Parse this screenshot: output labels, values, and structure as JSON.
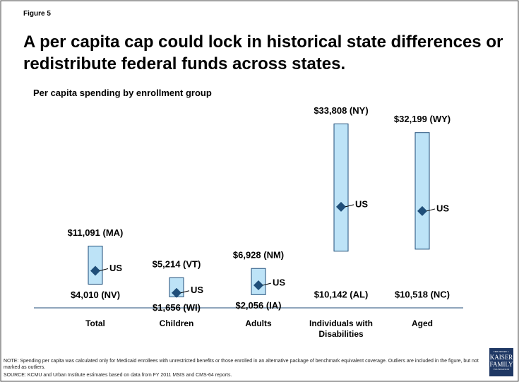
{
  "chart_data": {
    "type": "range",
    "figure_label": "Figure 5",
    "title": "A per capita cap could lock in historical state differences or redistribute federal funds across states.",
    "subtitle": "Per capita spending by enrollment group",
    "categories": [
      "Total",
      "Children",
      "Adults",
      "Individuals with Disabilities",
      "Aged"
    ],
    "high": [
      11091,
      5214,
      6928,
      33808,
      32199
    ],
    "high_labels": [
      "$11,091 (MA)",
      "$5,214 (VT)",
      "$6,928 (NM)",
      "$33,808 (NY)",
      "$32,199 (WY)"
    ],
    "low": [
      4010,
      1656,
      2056,
      10142,
      10518
    ],
    "low_labels": [
      "$4,010 (NV)",
      "$1,656 (WI)",
      "$2,056 (IA)",
      "$10,142 (AL)",
      "$10,518  (NC)"
    ],
    "us": [
      6500,
      2400,
      3800,
      18400,
      17600
    ],
    "us_label": "US",
    "ylim": [
      0,
      34000
    ],
    "bar_color": "#bde3f7",
    "marker_color": "#1f4e79",
    "note": "NOTE: Spending per capita was calculated only for Medicaid enrollees with unrestricted benefits or those enrolled in an alternative package of benchmark equivalent coverage. Outliers are included in the figure, but not marked as outliers.",
    "source": "SOURCE: KCMU and Urban Institute estimates based on data from FY 2011 MSIS and CMS-64 reports.",
    "logo": [
      "THE HENRY J.",
      "KAISER",
      "FAMILY",
      "FOUNDATION"
    ]
  }
}
